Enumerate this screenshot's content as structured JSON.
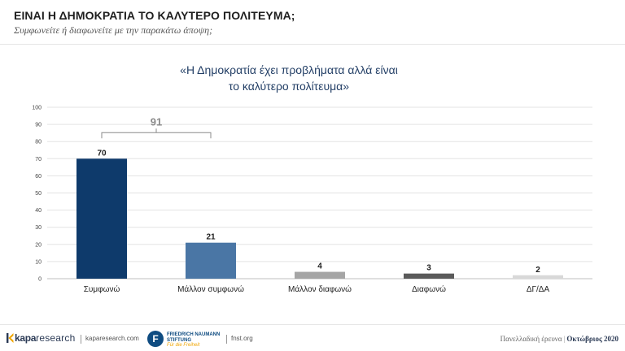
{
  "header": {
    "title": "ΕΙΝΑΙ Η ΔΗΜΟΚΡΑΤΙΑ ΤΟ ΚΑΛΥΤΕΡΟ ΠΟΛΙΤΕΥΜΑ;",
    "subtitle": "Συμφωνείτε ή διαφωνείτε με την παρακάτω άποψη;"
  },
  "chart_data": {
    "type": "bar",
    "title_lines": [
      "«Η Δημοκρατία έχει προβλήματα αλλά είναι",
      "το καλύτερο πολίτευμα»"
    ],
    "categories": [
      "Συμφωνώ",
      "Μάλλον συμφωνώ",
      "Μάλλον διαφωνώ",
      "Διαφωνώ",
      "ΔΓ/ΔΑ"
    ],
    "values": [
      70,
      21,
      4,
      3,
      2
    ],
    "bar_colors": [
      "#0e3a6b",
      "#4a76a5",
      "#a5a5a5",
      "#5a5a5a",
      "#d8d8d8"
    ],
    "ylim": [
      0,
      100
    ],
    "yticks": [
      0,
      10,
      20,
      30,
      40,
      50,
      60,
      70,
      80,
      90,
      100
    ],
    "grid": true,
    "legend": "none",
    "annotation": {
      "label": "91",
      "spans_categories": [
        "Συμφωνώ",
        "Μάλλον συμφωνώ"
      ]
    }
  },
  "footer": {
    "brand_a": "kapa",
    "brand_b": "research",
    "url_1": "kaparesearch.com",
    "partner_line_1": "FRIEDRICH NAUMANN",
    "partner_line_2": "STIFTUNG",
    "partner_tagline": "Für die Freiheit",
    "partner_initial": "F",
    "url_2": "fnst.org",
    "survey_label": "Πανελλαδική έρευνα",
    "survey_month": "Οκτώβριος 2020"
  }
}
